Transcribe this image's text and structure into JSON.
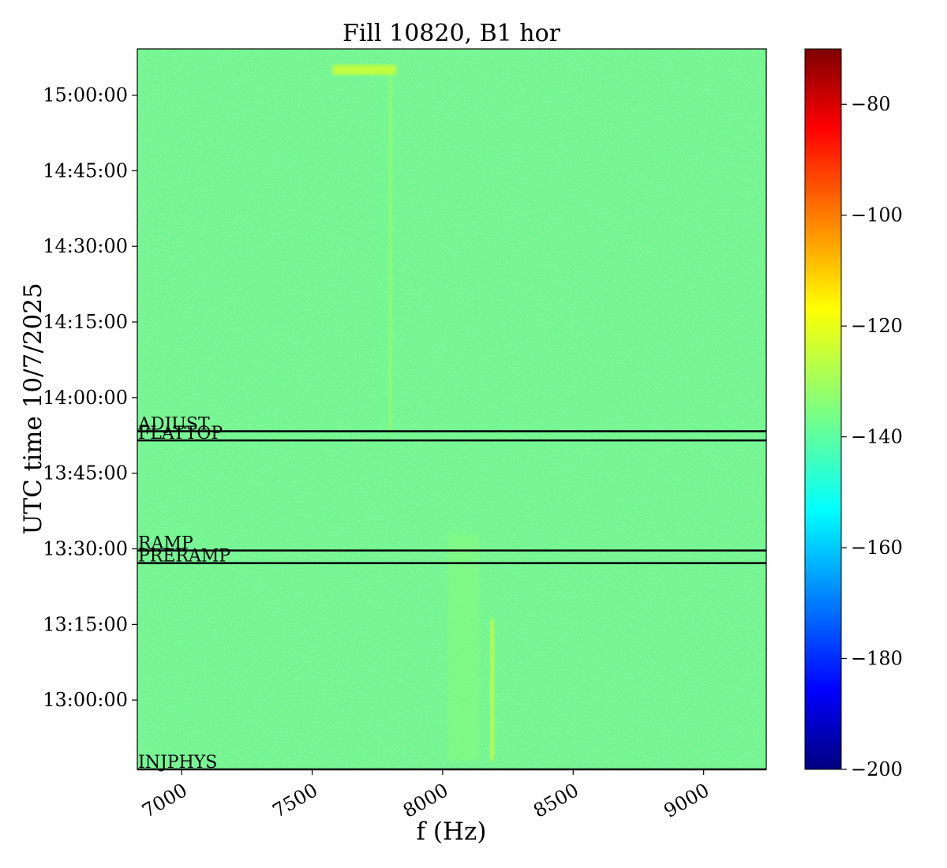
{
  "chart_data": {
    "type": "heatmap",
    "title": "Fill 10820, B1 hor",
    "xlabel": "f (Hz)",
    "ylabel": "UTC time 10/7/2025",
    "xlim": [
      6830,
      9240
    ],
    "ylim_time": [
      "12:46:15",
      "15:09:10"
    ],
    "xticks": [
      {
        "value": 7000,
        "label": "7000"
      },
      {
        "value": 7500,
        "label": "7500"
      },
      {
        "value": 8000,
        "label": "8000"
      },
      {
        "value": 8500,
        "label": "8500"
      },
      {
        "value": 9000,
        "label": "9000"
      }
    ],
    "yticks": [
      {
        "time": "13:00:00",
        "label": "13:00:00"
      },
      {
        "time": "13:15:00",
        "label": "13:15:00"
      },
      {
        "time": "13:30:00",
        "label": "13:30:00"
      },
      {
        "time": "13:45:00",
        "label": "13:45:00"
      },
      {
        "time": "14:00:00",
        "label": "14:00:00"
      },
      {
        "time": "14:15:00",
        "label": "14:15:00"
      },
      {
        "time": "14:30:00",
        "label": "14:30:00"
      },
      {
        "time": "14:45:00",
        "label": "14:45:00"
      },
      {
        "time": "15:00:00",
        "label": "15:00:00"
      }
    ],
    "events": [
      {
        "label": "INJPHYS",
        "time": "12:46:15"
      },
      {
        "label": "PRERAMP",
        "time": "13:27:10"
      },
      {
        "label": "RAMP",
        "time": "13:29:40"
      },
      {
        "label": "FLATTOP",
        "time": "13:51:30"
      },
      {
        "label": "ADJUST",
        "time": "13:53:20"
      }
    ],
    "background_level_db": -140,
    "features": [
      {
        "f_hz": 7800,
        "t_start": "13:53:00",
        "t_end": "15:04:00",
        "level_db": -132
      },
      {
        "f_hz": 8190,
        "t_start": "12:48:00",
        "t_end": "13:16:00",
        "level_db": -122
      },
      {
        "f_hz": 8080,
        "t_start": "12:48:00",
        "t_end": "13:33:00",
        "level_db": -133
      },
      {
        "f_hz": 7700,
        "t_start": "15:04:00",
        "t_end": "15:06:00",
        "level_db": -124
      }
    ],
    "colorbar": {
      "colormap": "jet",
      "min": -200,
      "max": -70,
      "ticks": [
        -80,
        -100,
        -120,
        -140,
        -160,
        -180,
        -200
      ],
      "tick_labels": [
        "−80",
        "−100",
        "−120",
        "−140",
        "−160",
        "−180",
        "−200"
      ]
    }
  }
}
